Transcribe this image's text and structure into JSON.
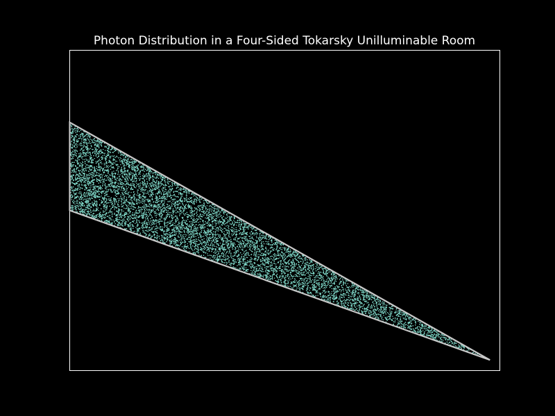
{
  "chart_data": {
    "type": "scatter",
    "title": "Photon Distribution in a Four-Sided Tokarsky Unilluminable Room",
    "xlabel": "",
    "ylabel": "",
    "axes_visible": false,
    "background_color": "#000000",
    "frame_color": "#ffffff",
    "point_color": "#7fd8c8",
    "boundary_color": "#c8c8c8",
    "room_vertices": [
      {
        "x": 0.0,
        "y": 0.775
      },
      {
        "x": 0.0,
        "y": 0.5
      },
      {
        "x": 0.977,
        "y": 0.033
      }
    ],
    "xlim": [
      0,
      1
    ],
    "ylim": [
      0,
      1
    ],
    "photon_count": 12000,
    "grid": false,
    "legend": "none"
  }
}
